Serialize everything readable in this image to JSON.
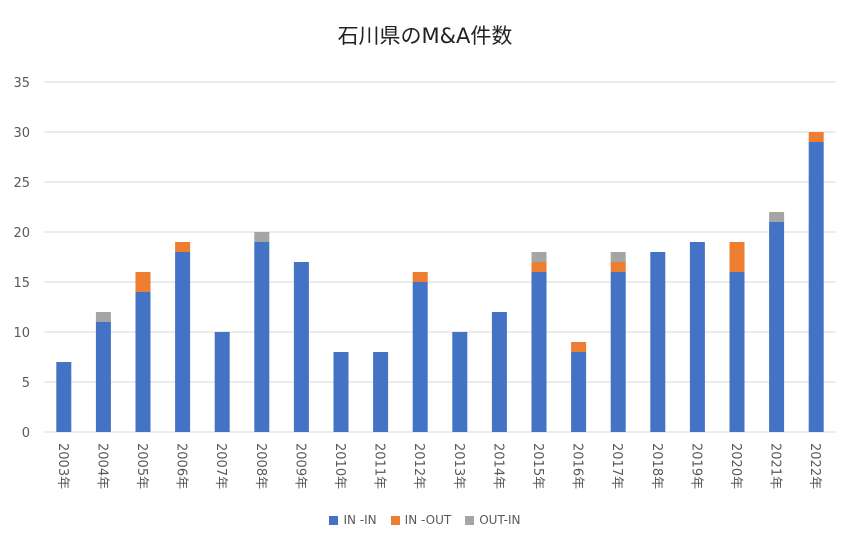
{
  "chart_data": {
    "type": "bar",
    "stacked": true,
    "title": "石川県のM&A件数",
    "categories": [
      "2003年",
      "2004年",
      "2005年",
      "2006年",
      "2007年",
      "2008年",
      "2009年",
      "2010年",
      "2011年",
      "2012年",
      "2013年",
      "2014年",
      "2015年",
      "2016年",
      "2017年",
      "2018年",
      "2019年",
      "2020年",
      "2021年",
      "2022年"
    ],
    "series": [
      {
        "name": "IN -IN",
        "color": "#4472c4",
        "values": [
          7,
          11,
          14,
          18,
          10,
          19,
          17,
          8,
          8,
          15,
          10,
          12,
          16,
          8,
          16,
          18,
          19,
          16,
          21,
          29
        ]
      },
      {
        "name": "IN -OUT",
        "color": "#ed7d31",
        "values": [
          0,
          0,
          2,
          1,
          0,
          0,
          0,
          0,
          0,
          1,
          0,
          0,
          1,
          1,
          1,
          0,
          0,
          3,
          0,
          1
        ]
      },
      {
        "name": "OUT-IN",
        "color": "#a5a5a5",
        "values": [
          0,
          1,
          0,
          0,
          0,
          1,
          0,
          0,
          0,
          0,
          0,
          0,
          1,
          0,
          1,
          0,
          0,
          0,
          1,
          0
        ]
      }
    ],
    "ylim": [
      0,
      35
    ],
    "yticks": [
      0,
      5,
      10,
      15,
      20,
      25,
      30,
      35
    ],
    "grid": true,
    "legend_position": "bottom"
  }
}
